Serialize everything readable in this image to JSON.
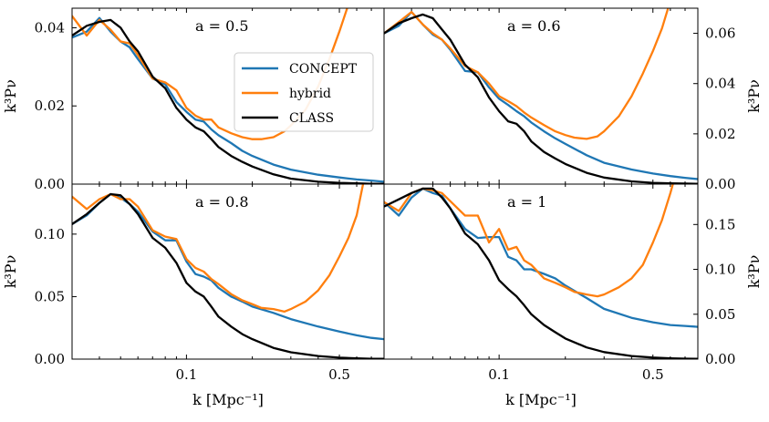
{
  "chart_data": {
    "type": "line",
    "xlabel": "k [Mpc⁻¹]",
    "xscale": "log",
    "xlim": [
      0.03,
      0.8
    ],
    "xticks": [
      0.1,
      0.5
    ],
    "xtick_labels": [
      "0.1",
      "0.5"
    ],
    "legend": {
      "placement": "inside top-left panel, right",
      "entries": [
        {
          "name": "CONCEPT",
          "color": "#1f77b4"
        },
        {
          "name": "hybrid",
          "color": "#ff7f0e"
        },
        {
          "name": "CLASS",
          "color": "#000000"
        }
      ]
    },
    "panels": [
      {
        "id": "a05",
        "label": "a = 0.5",
        "ylabel": "k³Pν",
        "yaxis_side": "left",
        "ylim": [
          0,
          0.045
        ],
        "yticks": [
          0,
          0.02,
          0.04
        ],
        "ytick_labels": [
          "0.00",
          "0.02",
          "0.04"
        ],
        "series": [
          {
            "name": "CONCEPT",
            "color": "#1f77b4",
            "x": [
              0.03,
              0.035,
              0.04,
              0.045,
              0.05,
              0.055,
              0.06,
              0.07,
              0.08,
              0.09,
              0.1,
              0.11,
              0.12,
              0.13,
              0.14,
              0.16,
              0.18,
              0.2,
              0.25,
              0.3,
              0.4,
              0.5,
              0.6,
              0.7,
              0.8
            ],
            "y": [
              0.0375,
              0.039,
              0.0425,
              0.039,
              0.0365,
              0.035,
              0.032,
              0.027,
              0.0255,
              0.021,
              0.0185,
              0.0165,
              0.016,
              0.014,
              0.0125,
              0.0105,
              0.0085,
              0.0072,
              0.005,
              0.0037,
              0.0024,
              0.0017,
              0.0012,
              0.0009,
              0.0006
            ]
          },
          {
            "name": "hybrid",
            "color": "#ff7f0e",
            "x": [
              0.03,
              0.035,
              0.04,
              0.045,
              0.05,
              0.055,
              0.06,
              0.07,
              0.08,
              0.09,
              0.1,
              0.11,
              0.12,
              0.13,
              0.14,
              0.16,
              0.18,
              0.2,
              0.22,
              0.25,
              0.28,
              0.3,
              0.35,
              0.4,
              0.45,
              0.5,
              0.55,
              0.6
            ],
            "y": [
              0.043,
              0.038,
              0.042,
              0.0395,
              0.0365,
              0.036,
              0.033,
              0.027,
              0.026,
              0.024,
              0.0195,
              0.0175,
              0.0165,
              0.0165,
              0.0145,
              0.013,
              0.012,
              0.0115,
              0.0115,
              0.012,
              0.0135,
              0.015,
              0.019,
              0.025,
              0.032,
              0.039,
              0.046,
              0.058
            ]
          },
          {
            "name": "CLASS",
            "color": "#000000",
            "x": [
              0.03,
              0.035,
              0.04,
              0.045,
              0.05,
              0.055,
              0.06,
              0.07,
              0.08,
              0.09,
              0.1,
              0.11,
              0.12,
              0.13,
              0.14,
              0.16,
              0.18,
              0.2,
              0.25,
              0.3,
              0.4,
              0.5,
              0.6,
              0.7,
              0.8
            ],
            "y": [
              0.038,
              0.0405,
              0.0415,
              0.042,
              0.04,
              0.0365,
              0.034,
              0.0275,
              0.0245,
              0.0195,
              0.0165,
              0.0145,
              0.0135,
              0.0115,
              0.0095,
              0.0072,
              0.0057,
              0.0045,
              0.0025,
              0.0014,
              0.0006,
              0.0003,
              0.0002,
              0.0001,
              0.0001
            ]
          }
        ]
      },
      {
        "id": "a06",
        "label": "a = 0.6",
        "ylabel": "k³Pν",
        "yaxis_side": "right",
        "ylim": [
          0,
          0.07
        ],
        "yticks": [
          0,
          0.02,
          0.04,
          0.06
        ],
        "ytick_labels": [
          "0.00",
          "0.02",
          "0.04",
          "0.06"
        ],
        "series": [
          {
            "name": "CONCEPT",
            "color": "#1f77b4",
            "x": [
              0.03,
              0.035,
              0.04,
              0.045,
              0.05,
              0.055,
              0.06,
              0.07,
              0.08,
              0.09,
              0.1,
              0.11,
              0.12,
              0.13,
              0.14,
              0.16,
              0.18,
              0.2,
              0.25,
              0.3,
              0.4,
              0.5,
              0.6,
              0.7,
              0.8
            ],
            "y": [
              0.06,
              0.063,
              0.0685,
              0.0635,
              0.0595,
              0.0575,
              0.0535,
              0.045,
              0.0445,
              0.0385,
              0.034,
              0.0315,
              0.029,
              0.027,
              0.0245,
              0.021,
              0.0182,
              0.016,
              0.0115,
              0.0085,
              0.0058,
              0.0042,
              0.0032,
              0.0025,
              0.002
            ]
          },
          {
            "name": "hybrid",
            "color": "#ff7f0e",
            "x": [
              0.03,
              0.035,
              0.04,
              0.045,
              0.05,
              0.055,
              0.06,
              0.07,
              0.08,
              0.09,
              0.1,
              0.11,
              0.12,
              0.13,
              0.14,
              0.16,
              0.18,
              0.2,
              0.22,
              0.25,
              0.28,
              0.3,
              0.35,
              0.4,
              0.45,
              0.5,
              0.55,
              0.6
            ],
            "y": [
              0.06,
              0.0645,
              0.0685,
              0.0635,
              0.06,
              0.0575,
              0.054,
              0.047,
              0.0445,
              0.04,
              0.035,
              0.033,
              0.031,
              0.0285,
              0.0265,
              0.0235,
              0.021,
              0.0195,
              0.0185,
              0.018,
              0.019,
              0.021,
              0.027,
              0.035,
              0.044,
              0.053,
              0.062,
              0.073
            ]
          },
          {
            "name": "CLASS",
            "color": "#000000",
            "x": [
              0.03,
              0.035,
              0.04,
              0.045,
              0.05,
              0.055,
              0.06,
              0.07,
              0.08,
              0.09,
              0.1,
              0.11,
              0.12,
              0.13,
              0.14,
              0.16,
              0.18,
              0.2,
              0.25,
              0.3,
              0.4,
              0.5,
              0.6,
              0.7,
              0.8
            ],
            "y": [
              0.06,
              0.064,
              0.066,
              0.0675,
              0.066,
              0.0615,
              0.0575,
              0.0475,
              0.0425,
              0.0345,
              0.029,
              0.025,
              0.024,
              0.021,
              0.017,
              0.0128,
              0.0102,
              0.008,
              0.0045,
              0.0026,
              0.0011,
              0.0005,
              0.0003,
              0.0002,
              0.0001
            ]
          }
        ]
      },
      {
        "id": "a08",
        "label": "a = 0.8",
        "ylabel": "k³Pν",
        "yaxis_side": "left",
        "ylim": [
          0,
          0.14
        ],
        "yticks": [
          0,
          0.05,
          0.1
        ],
        "ytick_labels": [
          "0.00",
          "0.05",
          "0.10"
        ],
        "series": [
          {
            "name": "CONCEPT",
            "color": "#1f77b4",
            "x": [
              0.03,
              0.035,
              0.04,
              0.045,
              0.05,
              0.055,
              0.06,
              0.07,
              0.08,
              0.09,
              0.1,
              0.11,
              0.12,
              0.13,
              0.14,
              0.16,
              0.18,
              0.2,
              0.25,
              0.3,
              0.4,
              0.5,
              0.6,
              0.7,
              0.8
            ],
            "y": [
              0.108,
              0.115,
              0.125,
              0.132,
              0.129,
              0.124,
              0.118,
              0.102,
              0.095,
              0.095,
              0.078,
              0.068,
              0.066,
              0.063,
              0.057,
              0.05,
              0.046,
              0.042,
              0.037,
              0.032,
              0.026,
              0.022,
              0.019,
              0.017,
              0.016
            ]
          },
          {
            "name": "hybrid",
            "color": "#ff7f0e",
            "x": [
              0.03,
              0.035,
              0.04,
              0.045,
              0.05,
              0.055,
              0.06,
              0.07,
              0.08,
              0.09,
              0.1,
              0.11,
              0.12,
              0.13,
              0.14,
              0.16,
              0.18,
              0.2,
              0.22,
              0.25,
              0.28,
              0.3,
              0.35,
              0.4,
              0.45,
              0.5,
              0.55,
              0.6,
              0.65
            ],
            "y": [
              0.13,
              0.12,
              0.128,
              0.132,
              0.128,
              0.128,
              0.122,
              0.103,
              0.098,
              0.096,
              0.08,
              0.073,
              0.07,
              0.064,
              0.06,
              0.052,
              0.047,
              0.044,
              0.041,
              0.04,
              0.038,
              0.04,
              0.046,
              0.055,
              0.067,
              0.082,
              0.097,
              0.115,
              0.145
            ]
          },
          {
            "name": "CLASS",
            "color": "#000000",
            "x": [
              0.03,
              0.035,
              0.04,
              0.045,
              0.05,
              0.055,
              0.06,
              0.07,
              0.08,
              0.09,
              0.1,
              0.11,
              0.12,
              0.13,
              0.14,
              0.16,
              0.18,
              0.2,
              0.25,
              0.3,
              0.4,
              0.5,
              0.6,
              0.7,
              0.8
            ],
            "y": [
              0.108,
              0.116,
              0.125,
              0.132,
              0.131,
              0.124,
              0.116,
              0.097,
              0.089,
              0.077,
              0.061,
              0.054,
              0.05,
              0.042,
              0.034,
              0.026,
              0.02,
              0.016,
              0.009,
              0.0055,
              0.0025,
              0.0012,
              0.0006,
              0.0003,
              0.0002
            ]
          }
        ]
      },
      {
        "id": "a1",
        "label": "a = 1",
        "ylabel": "k³Pν",
        "yaxis_side": "right",
        "ylim": [
          0,
          0.195
        ],
        "yticks": [
          0,
          0.05,
          0.1,
          0.15
        ],
        "ytick_labels": [
          "0.00",
          "0.05",
          "0.10",
          "0.15"
        ],
        "series": [
          {
            "name": "CONCEPT",
            "color": "#1f77b4",
            "x": [
              0.03,
              0.035,
              0.04,
              0.045,
              0.05,
              0.055,
              0.06,
              0.07,
              0.08,
              0.09,
              0.1,
              0.11,
              0.12,
              0.13,
              0.14,
              0.16,
              0.18,
              0.2,
              0.25,
              0.3,
              0.4,
              0.5,
              0.6,
              0.7,
              0.8
            ],
            "y": [
              0.175,
              0.16,
              0.18,
              0.19,
              0.185,
              0.182,
              0.168,
              0.145,
              0.135,
              0.136,
              0.136,
              0.114,
              0.11,
              0.1,
              0.1,
              0.095,
              0.09,
              0.082,
              0.068,
              0.056,
              0.046,
              0.041,
              0.038,
              0.037,
              0.036
            ]
          },
          {
            "name": "hybrid",
            "color": "#ff7f0e",
            "x": [
              0.03,
              0.035,
              0.04,
              0.045,
              0.05,
              0.055,
              0.06,
              0.07,
              0.08,
              0.09,
              0.1,
              0.11,
              0.12,
              0.13,
              0.14,
              0.16,
              0.18,
              0.2,
              0.22,
              0.25,
              0.28,
              0.3,
              0.35,
              0.4,
              0.45,
              0.5,
              0.55,
              0.6,
              0.65
            ],
            "y": [
              0.175,
              0.165,
              0.185,
              0.19,
              0.188,
              0.185,
              0.176,
              0.16,
              0.16,
              0.13,
              0.145,
              0.122,
              0.125,
              0.11,
              0.105,
              0.09,
              0.085,
              0.08,
              0.075,
              0.072,
              0.07,
              0.072,
              0.08,
              0.09,
              0.105,
              0.13,
              0.155,
              0.185,
              0.215
            ]
          },
          {
            "name": "CLASS",
            "color": "#000000",
            "x": [
              0.03,
              0.035,
              0.04,
              0.045,
              0.05,
              0.055,
              0.06,
              0.07,
              0.08,
              0.09,
              0.1,
              0.11,
              0.12,
              0.13,
              0.14,
              0.16,
              0.18,
              0.2,
              0.25,
              0.3,
              0.4,
              0.5,
              0.6,
              0.7,
              0.8
            ],
            "y": [
              0.17,
              0.178,
              0.185,
              0.19,
              0.19,
              0.18,
              0.168,
              0.14,
              0.128,
              0.11,
              0.088,
              0.078,
              0.07,
              0.06,
              0.05,
              0.038,
              0.03,
              0.023,
              0.013,
              0.0078,
              0.0035,
              0.0017,
              0.0009,
              0.0005,
              0.0003
            ]
          }
        ]
      }
    ]
  }
}
